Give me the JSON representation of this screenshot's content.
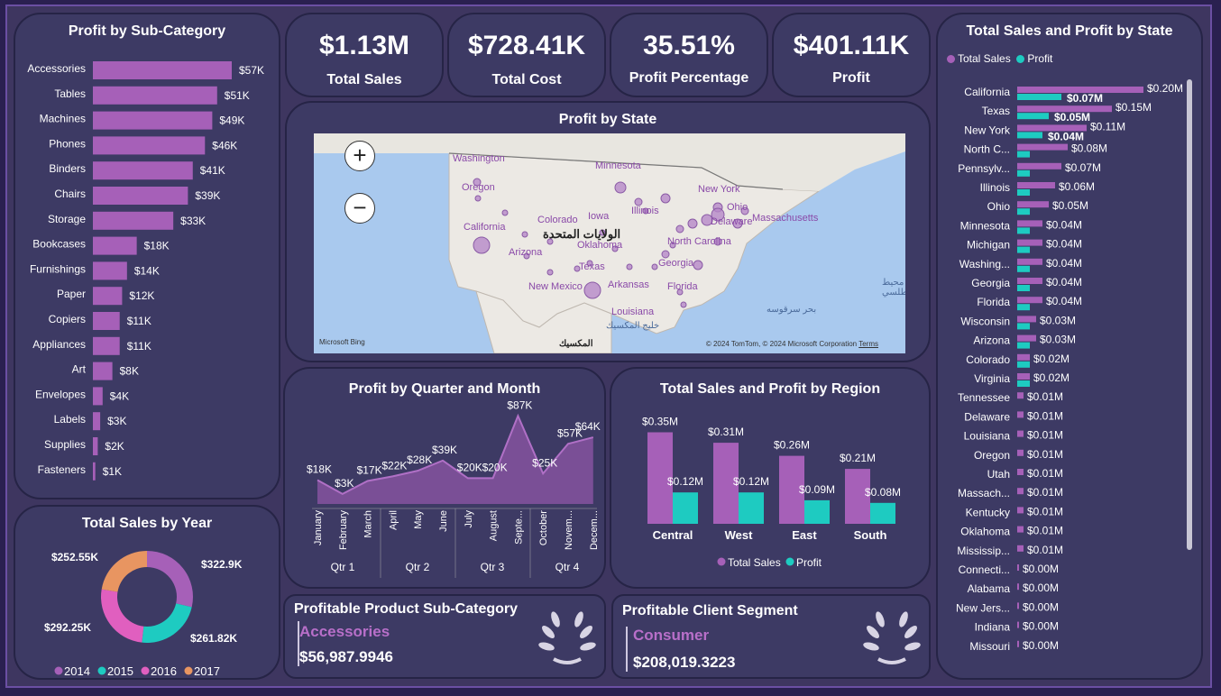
{
  "colors": {
    "sales": "#a660b8",
    "profit": "#1ecbc1",
    "bar": "#a660b8",
    "y2014": "#a660b8",
    "y2015": "#1ecbc1",
    "y2016": "#e05fbf",
    "y2017": "#e89561"
  },
  "kpis": [
    {
      "value": "$1.13M",
      "label": "Total Sales"
    },
    {
      "value": "$728.41K",
      "label": "Total Cost"
    },
    {
      "value": "35.51%",
      "label": "Profit Percentage"
    },
    {
      "value": "$401.11K",
      "label": "Profit"
    }
  ],
  "map_panel": {
    "title": "Profit by State",
    "zoom_in": "+",
    "zoom_out": "−",
    "labels": [
      "Washington",
      "Oregon",
      "California",
      "Arizona",
      "Minnesota",
      "Iowa",
      "Colorado",
      "Illinois",
      "Ohio",
      "New York",
      "Delaware",
      "Massachusetts",
      "الولايات المتحدة",
      "Oklahoma",
      "North Carolina",
      "Texas",
      "Georgia",
      "Arkansas",
      "New Mexico",
      "Florida",
      "Louisiana",
      "خليج المكسيك",
      "بحر سرقوسه",
      "المكسيك",
      "محيط الأطلسي"
    ],
    "attribution": "© 2024 TomTom, © 2024 Microsoft Corporation",
    "terms": "Terms",
    "provider": "Microsoft Bing"
  },
  "cards": [
    {
      "title": "Profitable Product Sub-Category",
      "sub": "Accessories",
      "value": "$56,987.9946"
    },
    {
      "title": "Profitable Client Segment",
      "sub": "Consumer",
      "value": "$208,019.3223"
    }
  ],
  "chart_data": [
    {
      "type": "bar",
      "orientation": "horizontal",
      "title": "Profit by Sub-Category",
      "categories": [
        "Accessories",
        "Tables",
        "Machines",
        "Phones",
        "Binders",
        "Chairs",
        "Storage",
        "Bookcases",
        "Furnishings",
        "Paper",
        "Copiers",
        "Appliances",
        "Art",
        "Envelopes",
        "Labels",
        "Supplies",
        "Fasteners"
      ],
      "values": [
        57,
        51,
        49,
        46,
        41,
        39,
        33,
        18,
        14,
        12,
        11,
        11,
        8,
        4,
        3,
        2,
        1
      ],
      "labels": [
        "$57K",
        "$51K",
        "$49K",
        "$46K",
        "$41K",
        "$39K",
        "$33K",
        "$18K",
        "$14K",
        "$12K",
        "$11K",
        "$11K",
        "$8K",
        "$4K",
        "$3K",
        "$2K",
        "$1K"
      ]
    },
    {
      "type": "pie",
      "title": "Total Sales by Year",
      "categories": [
        "2014",
        "2015",
        "2016",
        "2017"
      ],
      "values": [
        322.9,
        261.82,
        292.25,
        252.55
      ],
      "labels": [
        "$322.9K",
        "$261.82K",
        "$292.25K",
        "$252.55K"
      ]
    },
    {
      "type": "area",
      "title": "Profit by Quarter and Month",
      "categories": [
        "January",
        "February",
        "March",
        "April",
        "May",
        "June",
        "July",
        "August",
        "September",
        "October",
        "November",
        "December"
      ],
      "category_text": [
        "January",
        "February",
        "March",
        "April",
        "May",
        "June",
        "July",
        "August",
        "Septe...",
        "October",
        "Novem...",
        "Decem..."
      ],
      "quarters": [
        "Qtr 1",
        "Qtr 2",
        "Qtr 3",
        "Qtr 4"
      ],
      "values": [
        18,
        3,
        17,
        22,
        28,
        39,
        20,
        20,
        87,
        25,
        57,
        64
      ],
      "labels": [
        "$18K",
        "$3K",
        "$17K",
        "$22K",
        "$28K",
        "$39K",
        "$20K",
        "$20K",
        "$87K",
        "$25K",
        "$57K",
        "$64K"
      ]
    },
    {
      "type": "bar",
      "title": "Total Sales and Profit by Region",
      "categories": [
        "Central",
        "West",
        "East",
        "South"
      ],
      "series": [
        {
          "name": "Total Sales",
          "values": [
            0.35,
            0.31,
            0.26,
            0.21
          ],
          "labels": [
            "$0.35M",
            "$0.31M",
            "$0.26M",
            "$0.21M"
          ]
        },
        {
          "name": "Profit",
          "values": [
            0.12,
            0.12,
            0.09,
            0.08
          ],
          "labels": [
            "$0.12M",
            "$0.12M",
            "$0.09M",
            "$0.08M"
          ]
        }
      ]
    },
    {
      "type": "bar",
      "orientation": "horizontal",
      "title": "Total Sales and Profit by State",
      "categories": [
        "California",
        "Texas",
        "New York",
        "North C...",
        "Pennsylv...",
        "Illinois",
        "Ohio",
        "Minnesota",
        "Michigan",
        "Washing...",
        "Georgia",
        "Florida",
        "Wisconsin",
        "Arizona",
        "Colorado",
        "Virginia",
        "Tennessee",
        "Delaware",
        "Louisiana",
        "Oregon",
        "Utah",
        "Massach...",
        "Kentucky",
        "Oklahoma",
        "Mississip...",
        "Connecti...",
        "Alabama",
        "New Jers...",
        "Indiana",
        "Missouri"
      ],
      "series": [
        {
          "name": "Total Sales",
          "values": [
            0.2,
            0.15,
            0.11,
            0.08,
            0.07,
            0.06,
            0.05,
            0.04,
            0.04,
            0.04,
            0.04,
            0.04,
            0.03,
            0.03,
            0.02,
            0.02,
            0.01,
            0.01,
            0.01,
            0.01,
            0.01,
            0.01,
            0.01,
            0.01,
            0.01,
            0.0,
            0.0,
            0.0,
            0.0,
            0.0
          ]
        },
        {
          "name": "Profit",
          "values": [
            0.07,
            0.05,
            0.04,
            0.02,
            0.01,
            0.01,
            0.01,
            0.01,
            0.01,
            0.01,
            0.01,
            0.01,
            0.01,
            0.01,
            0.01,
            0.01,
            0.0,
            0.0,
            0.0,
            0.0,
            0.0,
            0.0,
            0.0,
            0.0,
            0.0,
            0.0,
            0.0,
            0.0,
            0.0,
            0.0
          ]
        }
      ],
      "labels": [
        "$0.20M",
        "$0.15M",
        "$0.11M",
        "$0.08M",
        "$0.07M",
        "$0.06M",
        "$0.05M",
        "$0.04M",
        "$0.04M",
        "$0.04M",
        "$0.04M",
        "$0.04M",
        "$0.03M",
        "$0.03M",
        "$0.02M",
        "$0.02M",
        "$0.01M",
        "$0.01M",
        "$0.01M",
        "$0.01M",
        "$0.01M",
        "$0.01M",
        "$0.01M",
        "$0.01M",
        "$0.01M",
        "$0.00M",
        "$0.00M",
        "$0.00M",
        "$0.00M",
        "$0.00M"
      ],
      "profit_labels": [
        "$0.07M",
        "$0.05M",
        "$0.04M"
      ]
    }
  ]
}
